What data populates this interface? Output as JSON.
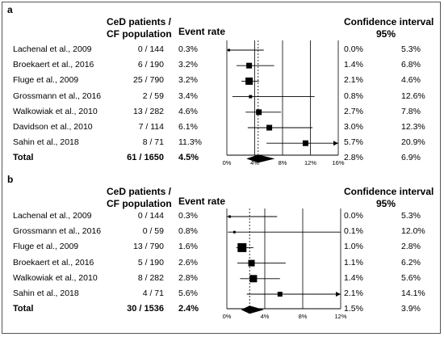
{
  "chart_data": [
    {
      "type": "forest",
      "panel_label": "a",
      "headers": {
        "count_line1": "CeD patients /",
        "count_line2": "CF population",
        "rate": "Event rate",
        "ci_line1": "Confidence interval",
        "ci_line2": "95%"
      },
      "x_ticks": [
        "0%",
        "4%",
        "8%",
        "12%",
        "16%"
      ],
      "x_tick_values": [
        0,
        4,
        8,
        12,
        16
      ],
      "xlim": [
        0,
        16
      ],
      "pooled_line": 4.5,
      "studies": [
        {
          "study": "Lachenal et al., 2009",
          "count": "0 / 144",
          "rate": "0.3%",
          "lo_text": "0.0%",
          "hi_text": "5.3%",
          "est": 0.3,
          "lo": 0.0,
          "hi": 5.3,
          "weight": 3
        },
        {
          "study": "Broekaert et al., 2016",
          "count": "6 / 190",
          "rate": "3.2%",
          "lo_text": "1.4%",
          "hi_text": "6.8%",
          "est": 3.2,
          "lo": 1.4,
          "hi": 6.8,
          "weight": 7
        },
        {
          "study": "Fluge et al., 2009",
          "count": "25 / 790",
          "rate": "3.2%",
          "lo_text": "2.1%",
          "hi_text": "4.6%",
          "est": 3.2,
          "lo": 2.1,
          "hi": 4.6,
          "weight": 9
        },
        {
          "study": "Grossmann et al., 2016",
          "count": "2 / 59",
          "rate": "3.4%",
          "lo_text": "0.8%",
          "hi_text": "12.6%",
          "est": 3.4,
          "lo": 0.8,
          "hi": 12.6,
          "weight": 4
        },
        {
          "study": "Walkowiak et al., 2010",
          "count": "13 / 282",
          "rate": "4.6%",
          "lo_text": "2.7%",
          "hi_text": "7.8%",
          "est": 4.6,
          "lo": 2.7,
          "hi": 7.8,
          "weight": 7
        },
        {
          "study": "Davidson et al., 2010",
          "count": "7 / 114",
          "rate": "6.1%",
          "lo_text": "3.0%",
          "hi_text": "12.3%",
          "est": 6.1,
          "lo": 3.0,
          "hi": 12.3,
          "weight": 7
        },
        {
          "study": "Sahin et al., 2018",
          "count": "8 / 71",
          "rate": "11.3%",
          "lo_text": "5.7%",
          "hi_text": "20.9%",
          "est": 11.3,
          "lo": 5.7,
          "hi": 20.9,
          "weight": 7,
          "arrow": true
        }
      ],
      "total": {
        "study": "Total",
        "count": "61 / 1650",
        "rate": "4.5%",
        "lo_text": "2.8%",
        "hi_text": "6.9%",
        "est": 4.5,
        "lo": 2.8,
        "hi": 6.9
      }
    },
    {
      "type": "forest",
      "panel_label": "b",
      "headers": {
        "count_line1": "CeD patients /",
        "count_line2": "CF population",
        "rate": "Event rate",
        "ci_line1": "Confidence interval",
        "ci_line2": "95%"
      },
      "x_ticks": [
        "0%",
        "4%",
        "8%",
        "12%"
      ],
      "x_tick_values": [
        0,
        4,
        8,
        12
      ],
      "xlim": [
        0,
        12
      ],
      "pooled_line": 2.4,
      "studies": [
        {
          "study": "Lachenal et al., 2009",
          "count": "0 / 144",
          "rate": "0.3%",
          "lo_text": "0.0%",
          "hi_text": "5.3%",
          "est": 0.3,
          "lo": 0.0,
          "hi": 5.3,
          "weight": 3
        },
        {
          "study": "Grossmann et al., 2016",
          "count": "0 / 59",
          "rate": "0.8%",
          "lo_text": "0.1%",
          "hi_text": "12.0%",
          "est": 0.8,
          "lo": 0.1,
          "hi": 12.0,
          "weight": 3
        },
        {
          "study": "Fluge et al., 2009",
          "count": "13 / 790",
          "rate": "1.6%",
          "lo_text": "1.0%",
          "hi_text": "2.8%",
          "est": 1.6,
          "lo": 1.0,
          "hi": 2.8,
          "weight": 11
        },
        {
          "study": "Broekaert et al., 2016",
          "count": "5 / 190",
          "rate": "2.6%",
          "lo_text": "1.1%",
          "hi_text": "6.2%",
          "est": 2.6,
          "lo": 1.1,
          "hi": 6.2,
          "weight": 8
        },
        {
          "study": "Walkowiak et al., 2010",
          "count": "8 / 282",
          "rate": "2.8%",
          "lo_text": "1.4%",
          "hi_text": "5.6%",
          "est": 2.8,
          "lo": 1.4,
          "hi": 5.6,
          "weight": 9
        },
        {
          "study": "Sahin et al., 2018",
          "count": "4 / 71",
          "rate": "5.6%",
          "lo_text": "2.1%",
          "hi_text": "14.1%",
          "est": 5.6,
          "lo": 2.1,
          "hi": 14.1,
          "weight": 6,
          "arrow": true
        }
      ],
      "total": {
        "study": "Total",
        "count": "30 / 1536",
        "rate": "2.4%",
        "lo_text": "1.5%",
        "hi_text": "3.9%",
        "est": 2.4,
        "lo": 1.5,
        "hi": 3.9
      }
    }
  ]
}
